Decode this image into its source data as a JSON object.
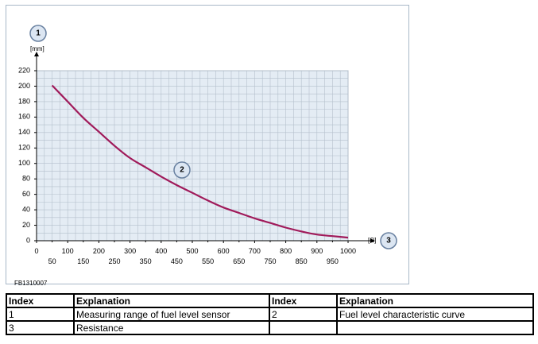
{
  "figure_id": "FB1310007",
  "callouts": {
    "y_axis": "1",
    "curve": "2",
    "x_axis": "3"
  },
  "chart_data": {
    "type": "line",
    "ylabel": "[mm]",
    "xlabel": "[Ω]",
    "xlim": [
      0,
      1000
    ],
    "ylim": [
      0,
      220
    ],
    "x_ticks_major": [
      "0",
      "100",
      "200",
      "300",
      "400",
      "500",
      "600",
      "700",
      "800",
      "900",
      "1000"
    ],
    "x_ticks_minor": [
      "50",
      "150",
      "250",
      "350",
      "450",
      "550",
      "650",
      "750",
      "850",
      "950"
    ],
    "y_ticks": [
      "0",
      "20",
      "40",
      "60",
      "80",
      "100",
      "120",
      "140",
      "160",
      "180",
      "200",
      "220"
    ],
    "grid": true,
    "series": [
      {
        "color": "#a01a5a",
        "x": [
          50,
          100,
          150,
          200,
          250,
          300,
          350,
          400,
          450,
          500,
          550,
          600,
          650,
          700,
          750,
          800,
          850,
          900,
          950,
          1000
        ],
        "y": [
          201,
          180,
          159,
          141,
          123,
          107,
          95,
          83,
          72,
          62,
          52,
          43,
          36,
          29,
          23,
          17,
          12,
          8,
          6,
          4
        ]
      }
    ]
  },
  "table": {
    "headers": [
      "Index",
      "Explanation",
      "Index",
      "Explanation"
    ],
    "rows": [
      [
        "1",
        "Measuring range of fuel level sensor",
        "2",
        "Fuel level characteristic curve"
      ],
      [
        "3",
        "Resistance",
        "",
        ""
      ]
    ]
  }
}
